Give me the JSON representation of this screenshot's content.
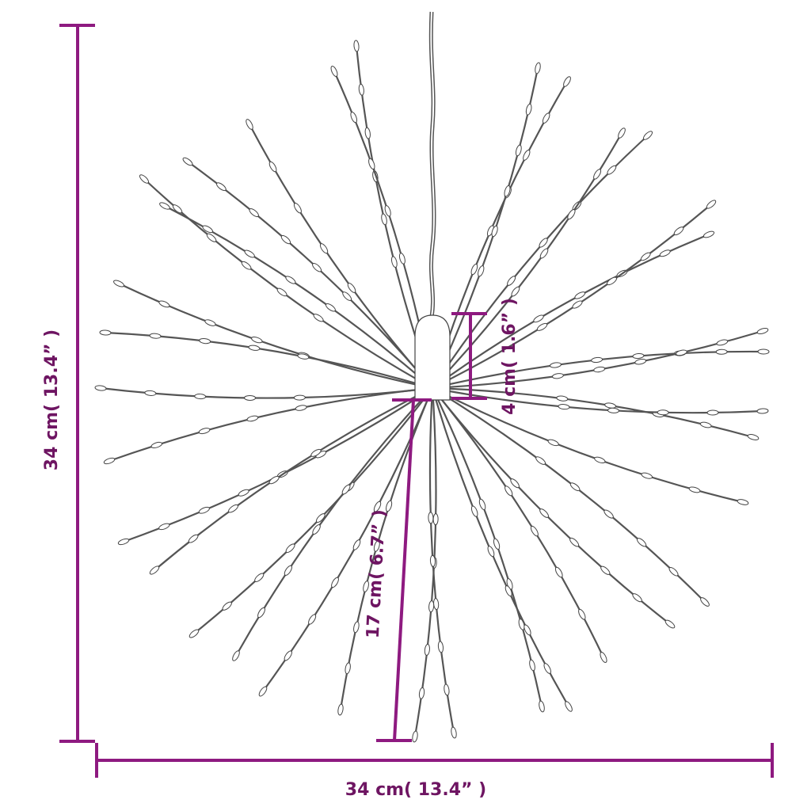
{
  "dimensions": {
    "height_label": "34 cm( 13.4” )",
    "width_label": "34 cm( 13.4” )",
    "bulb_height_label": "4 cm( 1.6” )",
    "strand_length_label": "17 cm( 6.7” )"
  },
  "colors": {
    "dimension_line": "#8e1a80",
    "dimension_text": "#6e1562",
    "strand": "#555555"
  }
}
